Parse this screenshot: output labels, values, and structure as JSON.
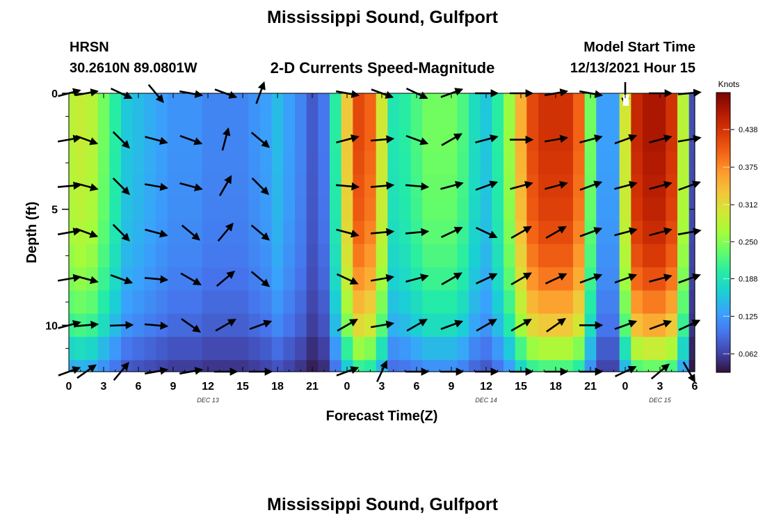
{
  "title": "Mississippi Sound, Gulfport",
  "station": "HRSN",
  "coordinates": "30.2610N  89.0801W",
  "subtitle": "2-D Currents Speed-Magnitude",
  "model_start_label": "Model Start Time",
  "model_start_value": "12/13/2021 Hour 15",
  "footer_title": "Mississippi Sound, Gulfport",
  "colors": {
    "scale": [
      "#30123b",
      "#4145ab",
      "#4675ed",
      "#39a2fc",
      "#1bcfd4",
      "#24eca6",
      "#61fc6c",
      "#a4fc3b",
      "#d1e834",
      "#f3c63a",
      "#fe9b2d",
      "#f36315",
      "#d93806",
      "#b11901",
      "#7a0402"
    ],
    "arrow": "#000000"
  },
  "chart_data": {
    "type": "heatmap",
    "xlabel": "Forecast Time(Z)",
    "ylabel": "Depth (ft)",
    "xlim": [
      0,
      54
    ],
    "ylim": [
      12,
      0
    ],
    "xticks": [
      0,
      3,
      6,
      9,
      12,
      15,
      18,
      21,
      24,
      27,
      30,
      33,
      36,
      39,
      42,
      45,
      48,
      51,
      54
    ],
    "xtick_labels": [
      "0",
      "3",
      "6",
      "9",
      "12",
      "15",
      "18",
      "21",
      "0",
      "3",
      "6",
      "9",
      "12",
      "15",
      "18",
      "21",
      "0",
      "3",
      "6"
    ],
    "yticks": [
      0,
      5,
      10
    ],
    "ytick_labels": [
      "0",
      "5",
      "10"
    ],
    "day_labels": [
      {
        "x": 12,
        "label": "DEC 13"
      },
      {
        "x": 36,
        "label": "DEC 14"
      },
      {
        "x": 51,
        "label": "DEC 15"
      }
    ],
    "colorbar": {
      "title": "Knots",
      "range": [
        0.031,
        0.5
      ],
      "ticks": [
        0.062,
        0.125,
        0.188,
        0.25,
        0.312,
        0.375,
        0.438
      ]
    },
    "depths": [
      0,
      1,
      2,
      3,
      4,
      5,
      6,
      7,
      8,
      9,
      10,
      11,
      12
    ],
    "times": [
      0,
      1,
      2,
      3,
      4,
      5,
      6,
      7,
      8,
      9,
      10,
      11,
      12,
      13,
      14,
      15,
      16,
      17,
      18,
      19,
      20,
      21,
      22,
      23,
      24,
      25,
      26,
      27,
      28,
      29,
      30,
      31,
      32,
      33,
      34,
      35,
      36,
      37,
      38,
      39,
      40,
      41,
      42,
      43,
      44,
      45,
      46,
      47,
      48,
      49,
      50,
      51,
      52,
      53,
      54
    ],
    "surface_speed": [
      0.28,
      0.29,
      0.28,
      0.24,
      0.2,
      0.16,
      0.15,
      0.14,
      0.13,
      0.12,
      0.12,
      0.12,
      0.11,
      0.11,
      0.11,
      0.11,
      0.12,
      0.13,
      0.15,
      0.13,
      0.11,
      0.08,
      0.1,
      0.2,
      0.33,
      0.42,
      0.4,
      0.3,
      0.19,
      0.2,
      0.22,
      0.24,
      0.24,
      0.24,
      0.22,
      0.18,
      0.16,
      0.2,
      0.26,
      0.35,
      0.42,
      0.44,
      0.44,
      0.44,
      0.4,
      0.24,
      0.13,
      0.13,
      0.3,
      0.45,
      0.47,
      0.47,
      0.44,
      0.28,
      0.07
    ],
    "depth_factor": [
      1.0,
      1.0,
      1.0,
      0.99,
      0.98,
      0.97,
      0.95,
      0.92,
      0.88,
      0.82,
      0.75,
      0.62,
      0.5
    ],
    "arrows": {
      "times": [
        0,
        1.5,
        4.5,
        7.5,
        10.5,
        13.5,
        16.5,
        24,
        27,
        30,
        33,
        36,
        39,
        42,
        45,
        48,
        51,
        53.5
      ],
      "depths": [
        0,
        2,
        4,
        6,
        8,
        10,
        12
      ],
      "directions_deg": [
        [
          15,
          10,
          -25,
          -50,
          -10,
          -20,
          70,
          -10,
          -20,
          -25,
          20,
          0,
          0,
          10,
          -10,
          -90,
          0,
          5
        ],
        [
          10,
          -20,
          -45,
          -15,
          -20,
          75,
          -40,
          15,
          5,
          -20,
          30,
          15,
          0,
          10,
          15,
          20,
          15,
          10
        ],
        [
          5,
          -15,
          -45,
          -10,
          -15,
          60,
          -45,
          -5,
          5,
          -5,
          15,
          20,
          15,
          15,
          20,
          15,
          15,
          20
        ],
        [
          10,
          -20,
          -45,
          -15,
          -40,
          50,
          -40,
          -15,
          5,
          5,
          25,
          -25,
          30,
          30,
          20,
          15,
          15,
          10
        ],
        [
          10,
          -15,
          -20,
          -5,
          -30,
          40,
          -40,
          -25,
          10,
          15,
          30,
          25,
          30,
          25,
          20,
          20,
          15,
          20
        ],
        [
          15,
          5,
          2,
          -5,
          -35,
          30,
          20,
          30,
          10,
          30,
          20,
          30,
          30,
          35,
          0,
          20,
          20,
          25
        ],
        [
          20,
          35,
          50,
          10,
          10,
          0,
          0,
          20,
          65,
          0,
          0,
          0,
          0,
          0,
          0,
          25,
          40,
          -60
        ]
      ]
    }
  }
}
